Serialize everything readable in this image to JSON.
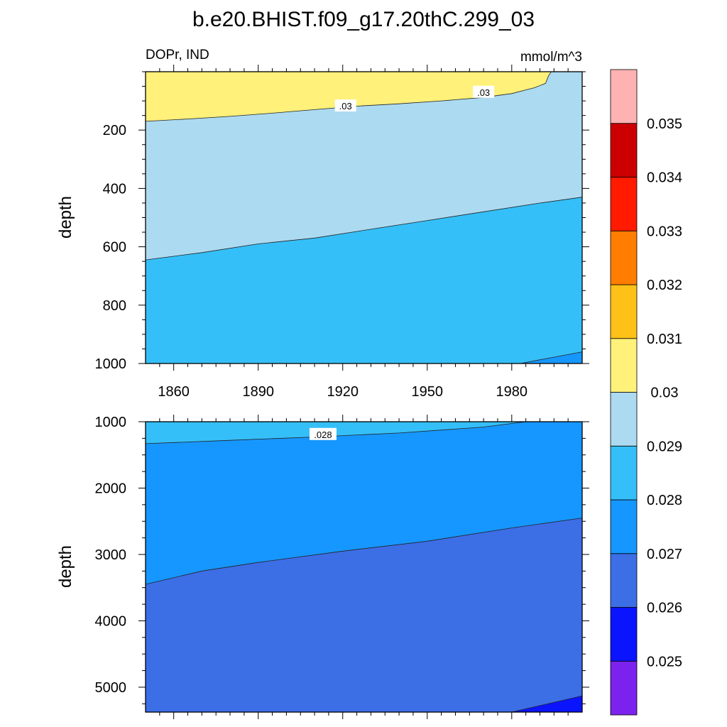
{
  "chart_data": {
    "type": "contour",
    "title": "b.e20.BHIST.f09_g17.20thC.299_03",
    "left_string": "DOPr, IND",
    "right_string": "mmol/m^3",
    "colorbar": {
      "levels": [
        "0.025",
        "0.026",
        "0.027",
        "0.028",
        "0.029",
        "0.03",
        "0.031",
        "0.032",
        "0.033",
        "0.034",
        "0.035"
      ],
      "colors": [
        "#7c22ee",
        "#0a14ff",
        "#3c6ee6",
        "#1697ff",
        "#35bff8",
        "#acdaf1",
        "#fff17a",
        "#ffc117",
        "#ff7d00",
        "#ff1a00",
        "#cc0000",
        "#ffb2b2"
      ]
    },
    "panels": [
      {
        "ylabel": "depth",
        "ylim": [
          0,
          1000
        ],
        "yticks": [
          200,
          400,
          600,
          800,
          1000
        ],
        "xlim": [
          1850,
          2005
        ],
        "xticks": [
          1860,
          1890,
          1920,
          1950,
          1980
        ],
        "xticklabels": [
          "1860",
          "1890",
          "1920",
          "1950",
          "1980"
        ],
        "line_labels": [
          {
            "text": ".03",
            "year": 1921,
            "depth": 117
          },
          {
            "text": ".03",
            "year": 1970,
            "depth": 70
          }
        ],
        "regions": [
          {
            "color": "#fff17a",
            "upper": [
              [
                1850,
                0
              ],
              [
                1994,
                0
              ]
            ],
            "lower": [
              [
                1850,
                170
              ],
              [
                1865,
                162
              ],
              [
                1880,
                153
              ],
              [
                1895,
                142
              ],
              [
                1910,
                130
              ],
              [
                1925,
                118
              ],
              [
                1940,
                110
              ],
              [
                1955,
                100
              ],
              [
                1970,
                88
              ],
              [
                1980,
                75
              ],
              [
                1988,
                55
              ],
              [
                1992,
                40
              ],
              [
                1993,
                15
              ],
              [
                1994,
                0
              ]
            ]
          },
          {
            "color": "#acdaf1",
            "upper": [
              [
                1850,
                170
              ],
              [
                1865,
                162
              ],
              [
                1880,
                153
              ],
              [
                1895,
                142
              ],
              [
                1910,
                130
              ],
              [
                1925,
                118
              ],
              [
                1940,
                110
              ],
              [
                1955,
                100
              ],
              [
                1970,
                88
              ],
              [
                1980,
                75
              ],
              [
                1988,
                55
              ],
              [
                1992,
                40
              ],
              [
                1993,
                15
              ],
              [
                1994,
                0
              ],
              [
                2005,
                0
              ]
            ],
            "lower": [
              [
                1850,
                645
              ],
              [
                1870,
                620
              ],
              [
                1890,
                590
              ],
              [
                1910,
                570
              ],
              [
                1930,
                540
              ],
              [
                1950,
                510
              ],
              [
                1970,
                480
              ],
              [
                1990,
                450
              ],
              [
                2005,
                430
              ]
            ]
          },
          {
            "color": "#35bff8",
            "upper": [
              [
                1850,
                645
              ],
              [
                1870,
                620
              ],
              [
                1890,
                590
              ],
              [
                1910,
                570
              ],
              [
                1930,
                540
              ],
              [
                1950,
                510
              ],
              [
                1970,
                480
              ],
              [
                1990,
                450
              ],
              [
                2005,
                430
              ]
            ],
            "lower": [
              [
                1850,
                1000
              ],
              [
                1983,
                1000
              ],
              [
                2005,
                960
              ]
            ]
          },
          {
            "color": "#1697ff",
            "upper": [
              [
                1983,
                1000
              ],
              [
                2005,
                960
              ]
            ],
            "lower": [
              [
                1983,
                1000
              ],
              [
                2005,
                1000
              ]
            ]
          }
        ]
      },
      {
        "ylabel": "depth",
        "ylim": [
          1000,
          5375
        ],
        "yticks": [
          1000,
          2000,
          3000,
          4000,
          5000
        ],
        "xlim": [
          1850,
          2005
        ],
        "xticks": [
          1860,
          1890,
          1920,
          1950,
          1980
        ],
        "line_labels": [
          {
            "text": ".028",
            "year": 1913,
            "depth": 1190
          }
        ],
        "regions": [
          {
            "color": "#35bff8",
            "upper": [
              [
                1850,
                1000
              ],
              [
                1985,
                1000
              ]
            ],
            "lower": [
              [
                1850,
                1330
              ],
              [
                1880,
                1280
              ],
              [
                1910,
                1230
              ],
              [
                1940,
                1170
              ],
              [
                1970,
                1080
              ],
              [
                1985,
                1000
              ]
            ]
          },
          {
            "color": "#1697ff",
            "upper": [
              [
                1850,
                1330
              ],
              [
                1880,
                1280
              ],
              [
                1910,
                1230
              ],
              [
                1940,
                1170
              ],
              [
                1970,
                1080
              ],
              [
                1985,
                1000
              ],
              [
                2005,
                1000
              ]
            ],
            "lower": [
              [
                1850,
                3450
              ],
              [
                1870,
                3250
              ],
              [
                1890,
                3120
              ],
              [
                1920,
                2950
              ],
              [
                1950,
                2800
              ],
              [
                1980,
                2600
              ],
              [
                2005,
                2450
              ]
            ]
          },
          {
            "color": "#3c6ee6",
            "upper": [
              [
                1850,
                3450
              ],
              [
                1870,
                3250
              ],
              [
                1890,
                3120
              ],
              [
                1920,
                2950
              ],
              [
                1950,
                2800
              ],
              [
                1980,
                2600
              ],
              [
                2005,
                2450
              ]
            ],
            "lower": [
              [
                1850,
                5375
              ],
              [
                1980,
                5375
              ],
              [
                2005,
                5130
              ]
            ]
          },
          {
            "color": "#0a14ff",
            "upper": [
              [
                1980,
                5375
              ],
              [
                2005,
                5130
              ]
            ],
            "lower": [
              [
                1980,
                5375
              ],
              [
                2005,
                5375
              ]
            ]
          }
        ]
      }
    ]
  }
}
